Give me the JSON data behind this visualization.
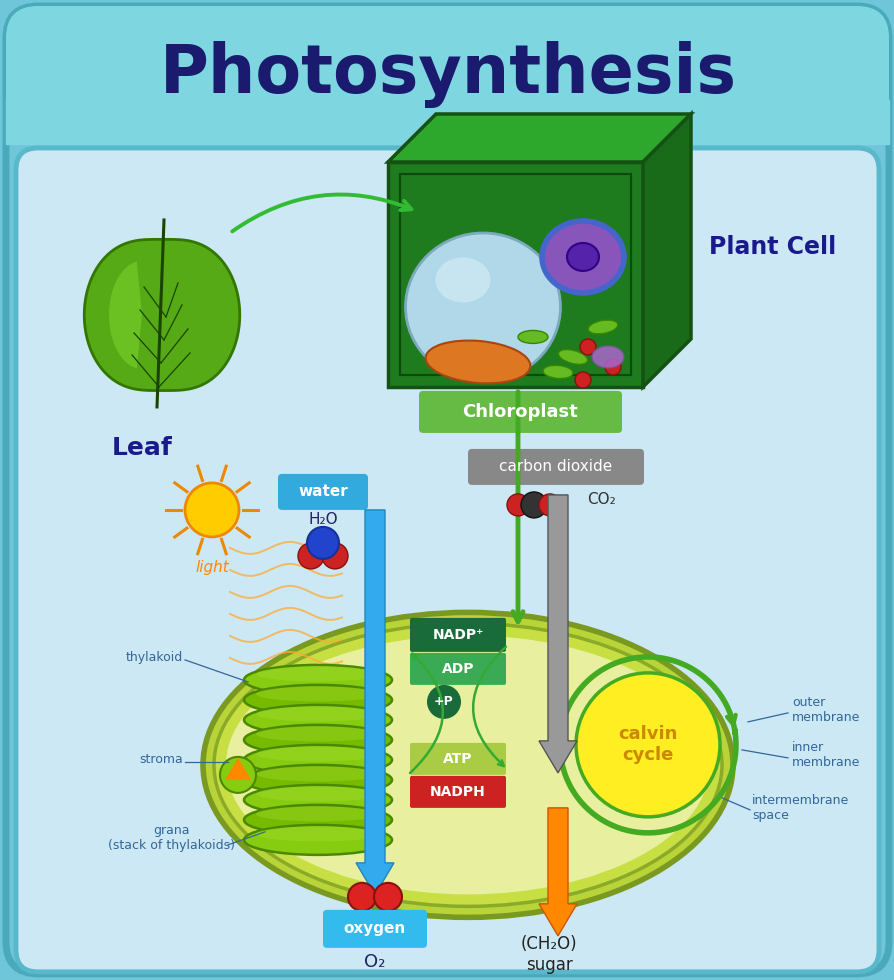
{
  "title": "Photosynthesis",
  "title_color": "#1a1a6e",
  "title_fontsize": 48,
  "bg_outer": "#6ec6d8",
  "bg_inner": "#cce8f4",
  "header_bg": "#7dd6e0",
  "outer_border_color": "#5ab8cc",
  "leaf_label": "Leaf",
  "leaf_label_color": "#1a1a8c",
  "leaf_label_fontsize": 18,
  "plant_cell_label": "Plant Cell",
  "plant_cell_label_color": "#1a1a8c",
  "plant_cell_label_fontsize": 17,
  "chloroplast_label": "Chloroplast",
  "chloroplast_label_bg": "#66bb44",
  "chloroplast_label_color": "#ffffff",
  "water_label": "water",
  "water_label_bg": "#33aadd",
  "water_label_color": "#ffffff",
  "h2o_label": "H₂O",
  "carbon_dioxide_label": "carbon dioxide",
  "carbon_dioxide_label_bg": "#888888",
  "carbon_dioxide_label_color": "#ffffff",
  "co2_label": "CO₂",
  "light_label": "light",
  "light_label_color": "#ff8800",
  "thylakoid_label": "thylakoid",
  "stroma_label": "stroma",
  "grana_label": "grana\n(stack of thylakoids)",
  "nadp_label": "NADP⁺",
  "nadp_bg": "#1a6b3a",
  "adp_label": "ADP",
  "adp_bg": "#3aaa55",
  "p_label": "+P",
  "p_bg": "#1a6b3a",
  "atp_label": "ATP",
  "atp_bg": "#aacc44",
  "nadph_label": "NADPH",
  "nadph_bg": "#cc2222",
  "calvin_cycle_label": "calvin\ncycle",
  "calvin_cycle_bg": "#ffee00",
  "calvin_cycle_color": "#cc8800",
  "oxygen_label": "oxygen",
  "oxygen_bg": "#33bbee",
  "oxygen_color": "#ffffff",
  "o2_label": "O₂",
  "sugar_label": "(CH₂O)\nsugar",
  "outer_membrane_label": "outer\nmembrane",
  "inner_membrane_label": "inner\nmembrane",
  "intermembrane_label": "intermembrane\nspace",
  "label_color": "#336699",
  "label_fontsize": 9,
  "arrow_blue": "#33aaee",
  "arrow_gray": "#888888",
  "arrow_orange": "#ff8800",
  "arrow_green": "#44aa22"
}
